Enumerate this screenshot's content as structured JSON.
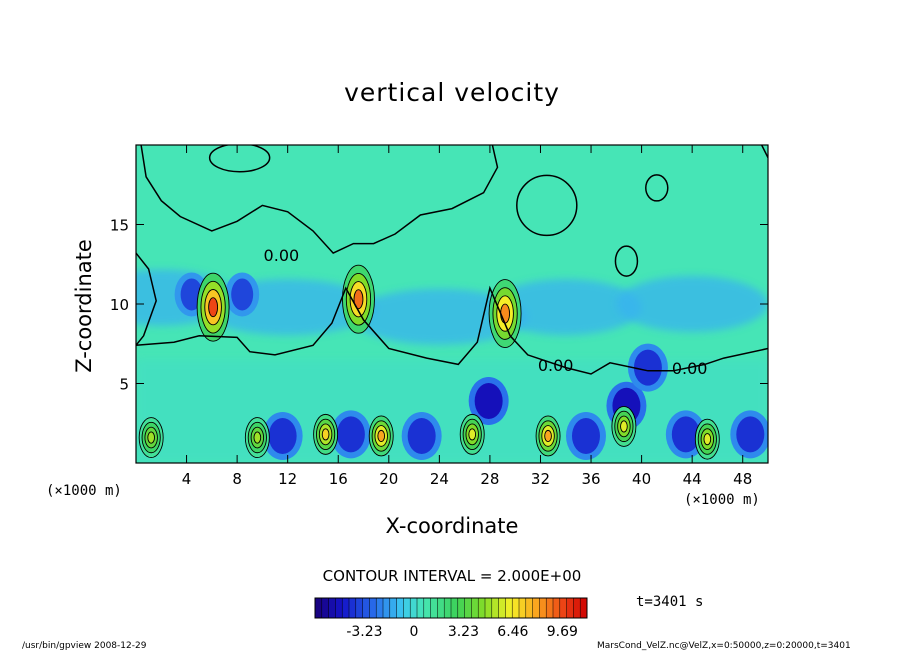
{
  "chart_data": {
    "type": "heatmap",
    "title": "vertical velocity",
    "xlabel": "X-coordinate",
    "ylabel": "Z-coordinate",
    "x_unit": "(×1000 m)",
    "xlim": [
      0,
      50
    ],
    "ylim": [
      0,
      20
    ],
    "x_ticks": [
      4,
      8,
      12,
      16,
      20,
      24,
      28,
      32,
      36,
      40,
      44,
      48
    ],
    "y_ticks": [
      5,
      10,
      15
    ],
    "contour_interval": "CONTOUR INTERVAL = 2.000E+00",
    "contour_labels": [
      "0.00",
      "0.00",
      "0.00"
    ],
    "colorbar": {
      "ticks": [
        "-3.23",
        "0",
        "3.23",
        "6.46",
        "9.69"
      ],
      "tick_values": [
        -3.23,
        0,
        3.23,
        6.46,
        9.69
      ],
      "range": [
        -6.46,
        11.3
      ]
    },
    "updrafts": [
      {
        "x": 6.1,
        "z": 9.8,
        "peak": 9.7
      },
      {
        "x": 17.6,
        "z": 10.3,
        "peak": 9.0
      },
      {
        "x": 29.2,
        "z": 9.4,
        "peak": 8.5
      },
      {
        "x": 1.2,
        "z": 1.6,
        "peak": 5
      },
      {
        "x": 9.6,
        "z": 1.6,
        "peak": 5
      },
      {
        "x": 15,
        "z": 1.8,
        "peak": 7
      },
      {
        "x": 19.4,
        "z": 1.7,
        "peak": 8
      },
      {
        "x": 26.6,
        "z": 1.8,
        "peak": 6
      },
      {
        "x": 32.6,
        "z": 1.7,
        "peak": 8
      },
      {
        "x": 38.6,
        "z": 2.3,
        "peak": 6
      },
      {
        "x": 45.2,
        "z": 1.5,
        "peak": 6
      }
    ],
    "downdrafts": [
      {
        "x": 4.4,
        "z": 10.6,
        "peak": -3.5
      },
      {
        "x": 8.4,
        "z": 10.6,
        "peak": -3.5
      },
      {
        "x": 11.6,
        "z": 1.7,
        "peak": -4
      },
      {
        "x": 17.0,
        "z": 1.8,
        "peak": -4
      },
      {
        "x": 22.6,
        "z": 1.7,
        "peak": -4
      },
      {
        "x": 27.9,
        "z": 3.9,
        "peak": -5
      },
      {
        "x": 35.6,
        "z": 1.7,
        "peak": -4
      },
      {
        "x": 38.8,
        "z": 3.6,
        "peak": -5
      },
      {
        "x": 40.5,
        "z": 6.0,
        "peak": -4
      },
      {
        "x": 43.5,
        "z": 1.8,
        "peak": -4
      },
      {
        "x": 48.6,
        "z": 1.8,
        "peak": -4
      }
    ]
  },
  "footer": {
    "left": "/usr/bin/gpview   2008-12-29",
    "right": "MarsCond_VelZ.nc@VelZ,x=0:50000,z=0:20000,t=3401",
    "time": "t=3401 s"
  }
}
